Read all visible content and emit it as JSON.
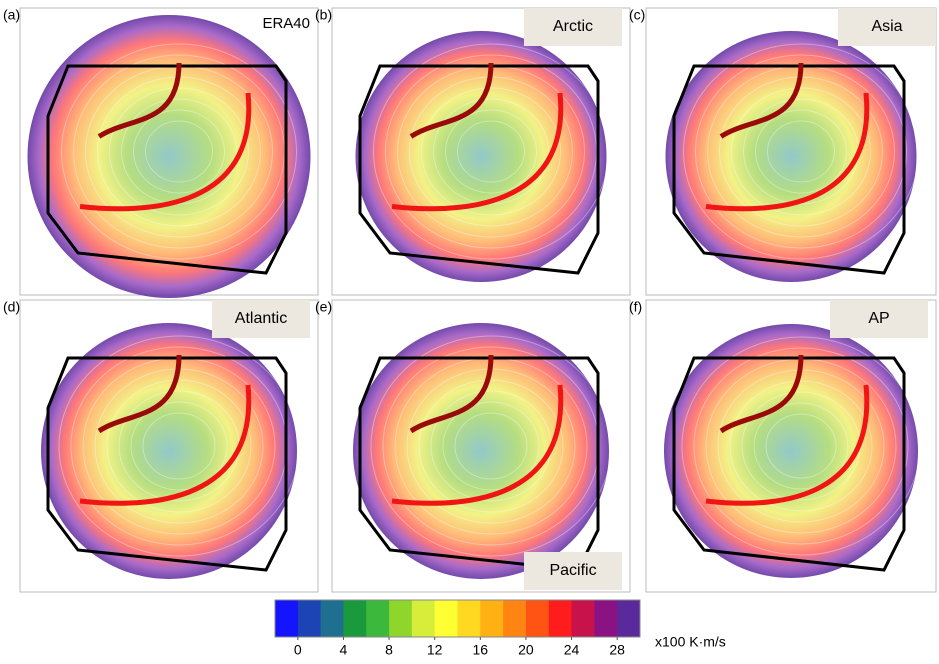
{
  "panels": [
    {
      "label": "(a)",
      "title": "ERA40"
    },
    {
      "label": "(b)",
      "title": "Arctic"
    },
    {
      "label": "(c)",
      "title": "Asia"
    },
    {
      "label": "(d)",
      "title": "Atlantic"
    },
    {
      "label": "(e)",
      "title": "Pacific"
    },
    {
      "label": "(f)",
      "title": "AP"
    }
  ],
  "colorbar": {
    "lim": [
      -2,
      30
    ],
    "ticks": [
      0,
      4,
      8,
      12,
      16,
      20,
      24,
      28
    ],
    "colors": [
      "#1414ff",
      "#1c44b4",
      "#1f7090",
      "#1a9a3c",
      "#3cb83c",
      "#8ed62c",
      "#d6ee3a",
      "#ffff34",
      "#ffd822",
      "#ffb012",
      "#ff8412",
      "#ff5414",
      "#ff1c1c",
      "#c8124c",
      "#8a1282",
      "#5a2a9c"
    ],
    "label": "x100 K·m/s"
  }
}
